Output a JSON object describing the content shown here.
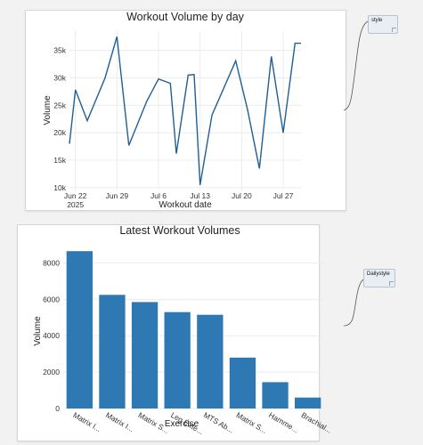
{
  "charts": {
    "line_panel": {
      "title": "Workout Volume by day",
      "xlabel": "Workout date",
      "ylabel": "Volume"
    },
    "bar_panel": {
      "title": "Latest Workout Volumes",
      "xlabel": "Exercise",
      "ylabel": "Volume"
    }
  },
  "notes": {
    "note1": "style",
    "note2": "Dailystyle"
  },
  "colors": {
    "line": "#1f5f96",
    "bar": "#2e78b3",
    "grid": "#ececec"
  },
  "chart_data": [
    {
      "type": "line",
      "title": "Workout Volume by day",
      "xlabel": "Workout date",
      "ylabel": "Volume",
      "x_start": "2025-06-21",
      "x_range": [
        "2025-06-21",
        "2025-07-30"
      ],
      "x_ticks": [
        {
          "date": "2025-06-22",
          "label": "Jun 22",
          "sublabel": "2025"
        },
        {
          "date": "2025-06-29",
          "label": "Jun 29"
        },
        {
          "date": "2025-07-06",
          "label": "Jul 6"
        },
        {
          "date": "2025-07-13",
          "label": "Jul 13"
        },
        {
          "date": "2025-07-20",
          "label": "Jul 20"
        },
        {
          "date": "2025-07-27",
          "label": "Jul 27"
        }
      ],
      "y_ticks": [
        10000,
        15000,
        20000,
        25000,
        30000,
        35000
      ],
      "y_tick_labels": [
        "10k",
        "15k",
        "20k",
        "25k",
        "30k",
        "35k"
      ],
      "ylim": [
        9500,
        38500
      ],
      "grid": true,
      "series": [
        {
          "x": [
            "2025-06-21",
            "2025-06-22",
            "2025-06-24",
            "2025-06-27",
            "2025-06-29",
            "2025-07-01",
            "2025-07-04",
            "2025-07-06",
            "2025-07-08",
            "2025-07-09",
            "2025-07-11",
            "2025-07-12",
            "2025-07-13",
            "2025-07-15",
            "2025-07-19",
            "2025-07-21",
            "2025-07-23",
            "2025-07-25",
            "2025-07-27",
            "2025-07-29",
            "2025-07-30"
          ],
          "y": [
            18000,
            27800,
            22200,
            30000,
            37500,
            17700,
            25700,
            29800,
            29000,
            16200,
            30500,
            30600,
            10500,
            23200,
            33100,
            24200,
            13500,
            33900,
            20000,
            36300,
            36300
          ]
        }
      ]
    },
    {
      "type": "bar",
      "title": "Latest Workout Volumes",
      "xlabel": "Exercise",
      "ylabel": "Volume",
      "categories": [
        "Matrix I...",
        "Matrix I...",
        "Matrix S...",
        "Leg Exte...",
        "MTS Ab...",
        "Matrix S...",
        "Hamme...",
        "Brachial..."
      ],
      "values": [
        8650,
        6250,
        5850,
        5300,
        5150,
        2800,
        1450,
        600
      ],
      "y_ticks": [
        0,
        2000,
        4000,
        6000,
        8000
      ],
      "ylim": [
        0,
        9100
      ],
      "grid": true
    }
  ]
}
